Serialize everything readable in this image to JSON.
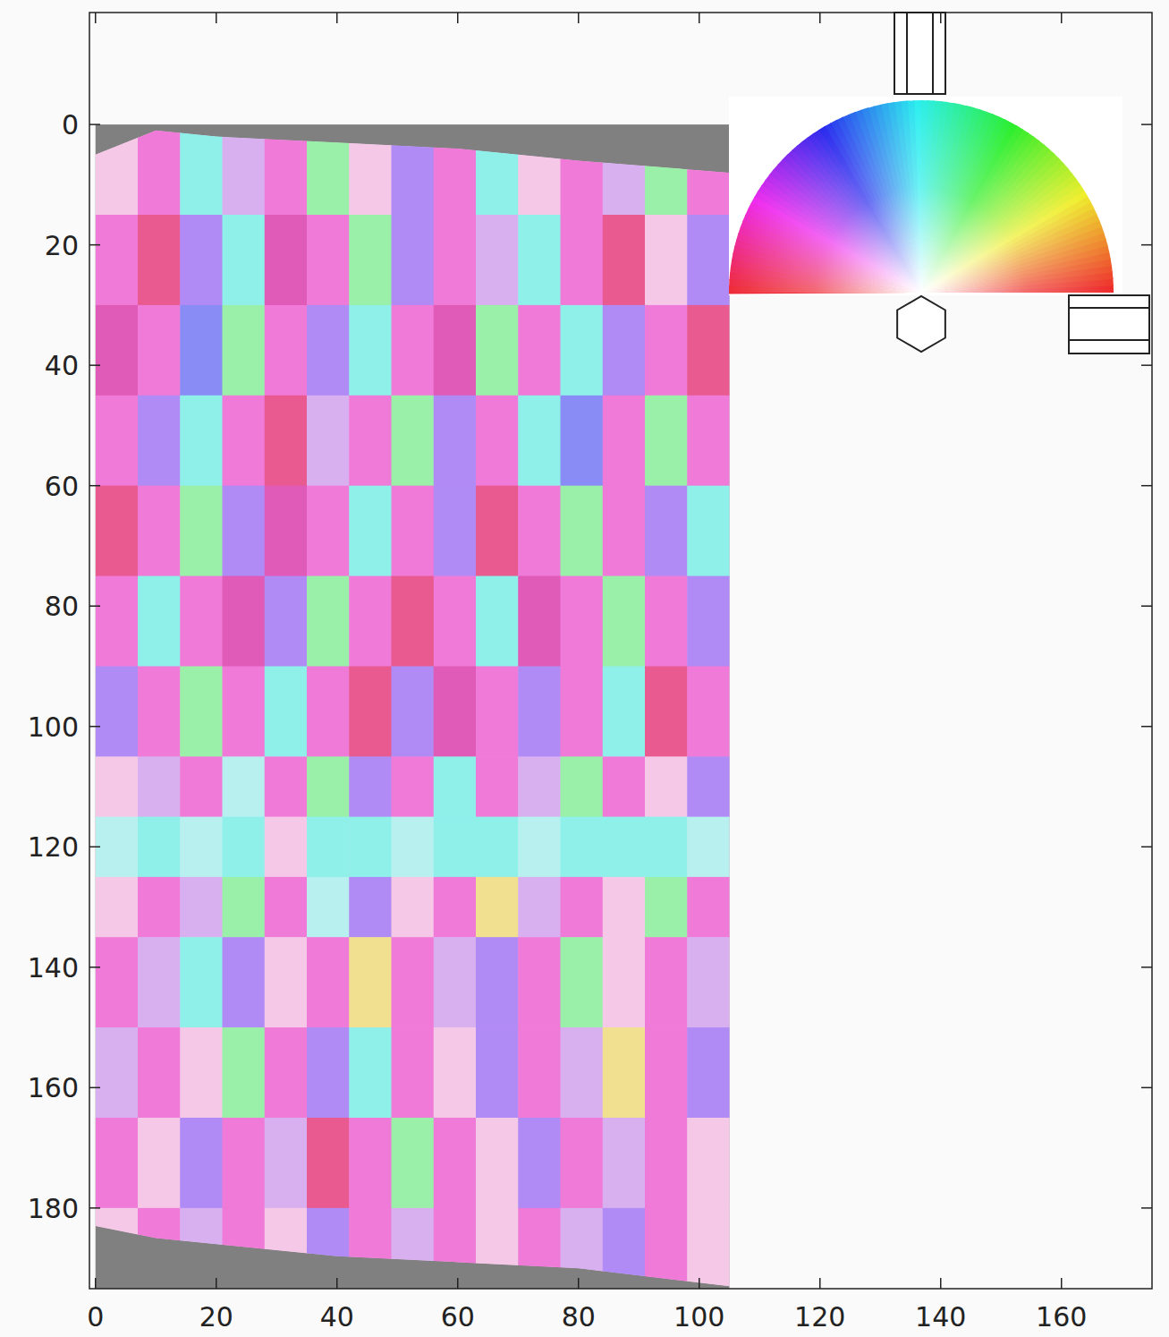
{
  "chart_data": {
    "type": "image",
    "xlim": [
      -1,
      175
    ],
    "ylim": [
      -18.6,
      193.4
    ],
    "xticks": [
      0,
      20,
      40,
      60,
      80,
      100,
      120,
      140,
      160
    ],
    "yticks": [
      0,
      20,
      40,
      60,
      80,
      100,
      120,
      140,
      160,
      180
    ],
    "image_xlim": [
      0,
      105
    ],
    "image_ylim": [
      0,
      193.4
    ],
    "edge_x": [
      0,
      10,
      20,
      40,
      60,
      80,
      105
    ],
    "top_edge": [
      5,
      1,
      2,
      3,
      4,
      6,
      8
    ],
    "bottom_edge": [
      183,
      185,
      186,
      188,
      189,
      190,
      193
    ],
    "x_edges": [
      0,
      7,
      14,
      21,
      28,
      35,
      42,
      49,
      56,
      63,
      70,
      77,
      84,
      91,
      98,
      105
    ],
    "y_edges": [
      0,
      15,
      30,
      45,
      60,
      75,
      90,
      105,
      115,
      125,
      135,
      150,
      165,
      180,
      195
    ],
    "cells": [
      [
        "#f5c8e8",
        "#f07ad8",
        "#8ff0ea",
        "#d8b0f0",
        "#f07ad8",
        "#9af0a8",
        "#f5c8e8",
        "#b08af5",
        "#f07ad8",
        "#8ff0ea",
        "#f5c8e8",
        "#f07ad8",
        "#d8b0f0",
        "#9af0a8",
        "#f07ad8"
      ],
      [
        "#f07ad8",
        "#e85a90",
        "#b08af5",
        "#8ff0ea",
        "#e05ab8",
        "#f07ad8",
        "#9af0a8",
        "#b08af5",
        "#f07ad8",
        "#d8b0f0",
        "#8ff0ea",
        "#f07ad8",
        "#e85a90",
        "#f5c8e8",
        "#b08af5"
      ],
      [
        "#e05ab8",
        "#f07ad8",
        "#8a8cf5",
        "#9af0a8",
        "#f07ad8",
        "#b08af5",
        "#8ff0ea",
        "#f07ad8",
        "#e05ab8",
        "#9af0a8",
        "#f07ad8",
        "#8ff0ea",
        "#b08af5",
        "#f07ad8",
        "#e85a90"
      ],
      [
        "#f07ad8",
        "#b08af5",
        "#8ff0ea",
        "#f07ad8",
        "#e85a90",
        "#d8b0f0",
        "#f07ad8",
        "#9af0a8",
        "#b08af5",
        "#f07ad8",
        "#8ff0ea",
        "#8a8cf5",
        "#f07ad8",
        "#9af0a8",
        "#f07ad8"
      ],
      [
        "#e85a90",
        "#f07ad8",
        "#9af0a8",
        "#b08af5",
        "#e05ab8",
        "#f07ad8",
        "#8ff0ea",
        "#f07ad8",
        "#b08af5",
        "#e85a90",
        "#f07ad8",
        "#9af0a8",
        "#f07ad8",
        "#b08af5",
        "#8ff0ea"
      ],
      [
        "#f07ad8",
        "#8ff0ea",
        "#f07ad8",
        "#e05ab8",
        "#b08af5",
        "#9af0a8",
        "#f07ad8",
        "#e85a90",
        "#f07ad8",
        "#8ff0ea",
        "#e05ab8",
        "#f07ad8",
        "#9af0a8",
        "#f07ad8",
        "#b08af5"
      ],
      [
        "#b08af5",
        "#f07ad8",
        "#9af0a8",
        "#f07ad8",
        "#8ff0ea",
        "#f07ad8",
        "#e85a90",
        "#b08af5",
        "#e05ab8",
        "#f07ad8",
        "#b08af5",
        "#f07ad8",
        "#8ff0ea",
        "#e85a90",
        "#f07ad8"
      ],
      [
        "#f5c8e8",
        "#d8b0f0",
        "#f07ad8",
        "#b8f0f0",
        "#f07ad8",
        "#9af0a8",
        "#b08af5",
        "#f07ad8",
        "#8ff0ea",
        "#f07ad8",
        "#d8b0f0",
        "#9af0a8",
        "#f07ad8",
        "#f5c8e8",
        "#b08af5"
      ],
      [
        "#b8f0f0",
        "#8ff0ea",
        "#b8f0f0",
        "#8ff0ea",
        "#f5c8e8",
        "#8ff0ea",
        "#8ff0ea",
        "#b8f0f0",
        "#8ff0ea",
        "#8ff0ea",
        "#b8f0f0",
        "#8ff0ea",
        "#8ff0ea",
        "#8ff0ea",
        "#b8f0f0"
      ],
      [
        "#f5c8e8",
        "#f07ad8",
        "#d8b0f0",
        "#9af0a8",
        "#f07ad8",
        "#b8f0f0",
        "#b08af5",
        "#f5c8e8",
        "#f07ad8",
        "#f0e090",
        "#d8b0f0",
        "#f07ad8",
        "#f5c8e8",
        "#9af0a8",
        "#f07ad8"
      ],
      [
        "#f07ad8",
        "#d8b0f0",
        "#8ff0ea",
        "#b08af5",
        "#f5c8e8",
        "#f07ad8",
        "#f0e090",
        "#f07ad8",
        "#d8b0f0",
        "#b08af5",
        "#f07ad8",
        "#9af0a8",
        "#f5c8e8",
        "#f07ad8",
        "#d8b0f0"
      ],
      [
        "#d8b0f0",
        "#f07ad8",
        "#f5c8e8",
        "#9af0a8",
        "#f07ad8",
        "#b08af5",
        "#8ff0ea",
        "#f07ad8",
        "#f5c8e8",
        "#b08af5",
        "#f07ad8",
        "#d8b0f0",
        "#f0e090",
        "#f07ad8",
        "#b08af5"
      ],
      [
        "#f07ad8",
        "#f5c8e8",
        "#b08af5",
        "#f07ad8",
        "#d8b0f0",
        "#e85a90",
        "#f07ad8",
        "#9af0a8",
        "#f07ad8",
        "#f5c8e8",
        "#b08af5",
        "#f07ad8",
        "#d8b0f0",
        "#f07ad8",
        "#f5c8e8"
      ],
      [
        "#f5c8e8",
        "#f07ad8",
        "#d8b0f0",
        "#f07ad8",
        "#f5c8e8",
        "#b08af5",
        "#f07ad8",
        "#d8b0f0",
        "#f07ad8",
        "#f5c8e8",
        "#f07ad8",
        "#d8b0f0",
        "#b08af5",
        "#f07ad8",
        "#f5c8e8"
      ]
    ]
  }
}
